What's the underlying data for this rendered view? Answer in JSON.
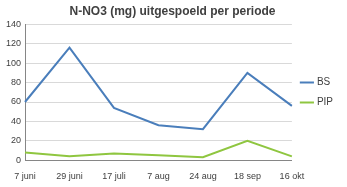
{
  "chart_data": {
    "type": "line",
    "title": "N-NO3 (mg) uitgespoeld per periode",
    "categories": [
      "7 juni",
      "29 juni",
      "17 juli",
      "7 aug",
      "24 aug",
      "18 sep",
      "16 okt"
    ],
    "series": [
      {
        "name": "BS",
        "color": "#4a7ebb",
        "values": [
          60,
          116,
          54,
          36,
          32,
          90,
          56
        ]
      },
      {
        "name": "PIP",
        "color": "#8fc640",
        "values": [
          8,
          4,
          7,
          5,
          3,
          20,
          4
        ]
      }
    ],
    "ylim": [
      0,
      140
    ],
    "yticks": [
      0,
      20,
      40,
      60,
      80,
      100,
      120,
      140
    ],
    "grid": true,
    "legend": "right"
  }
}
